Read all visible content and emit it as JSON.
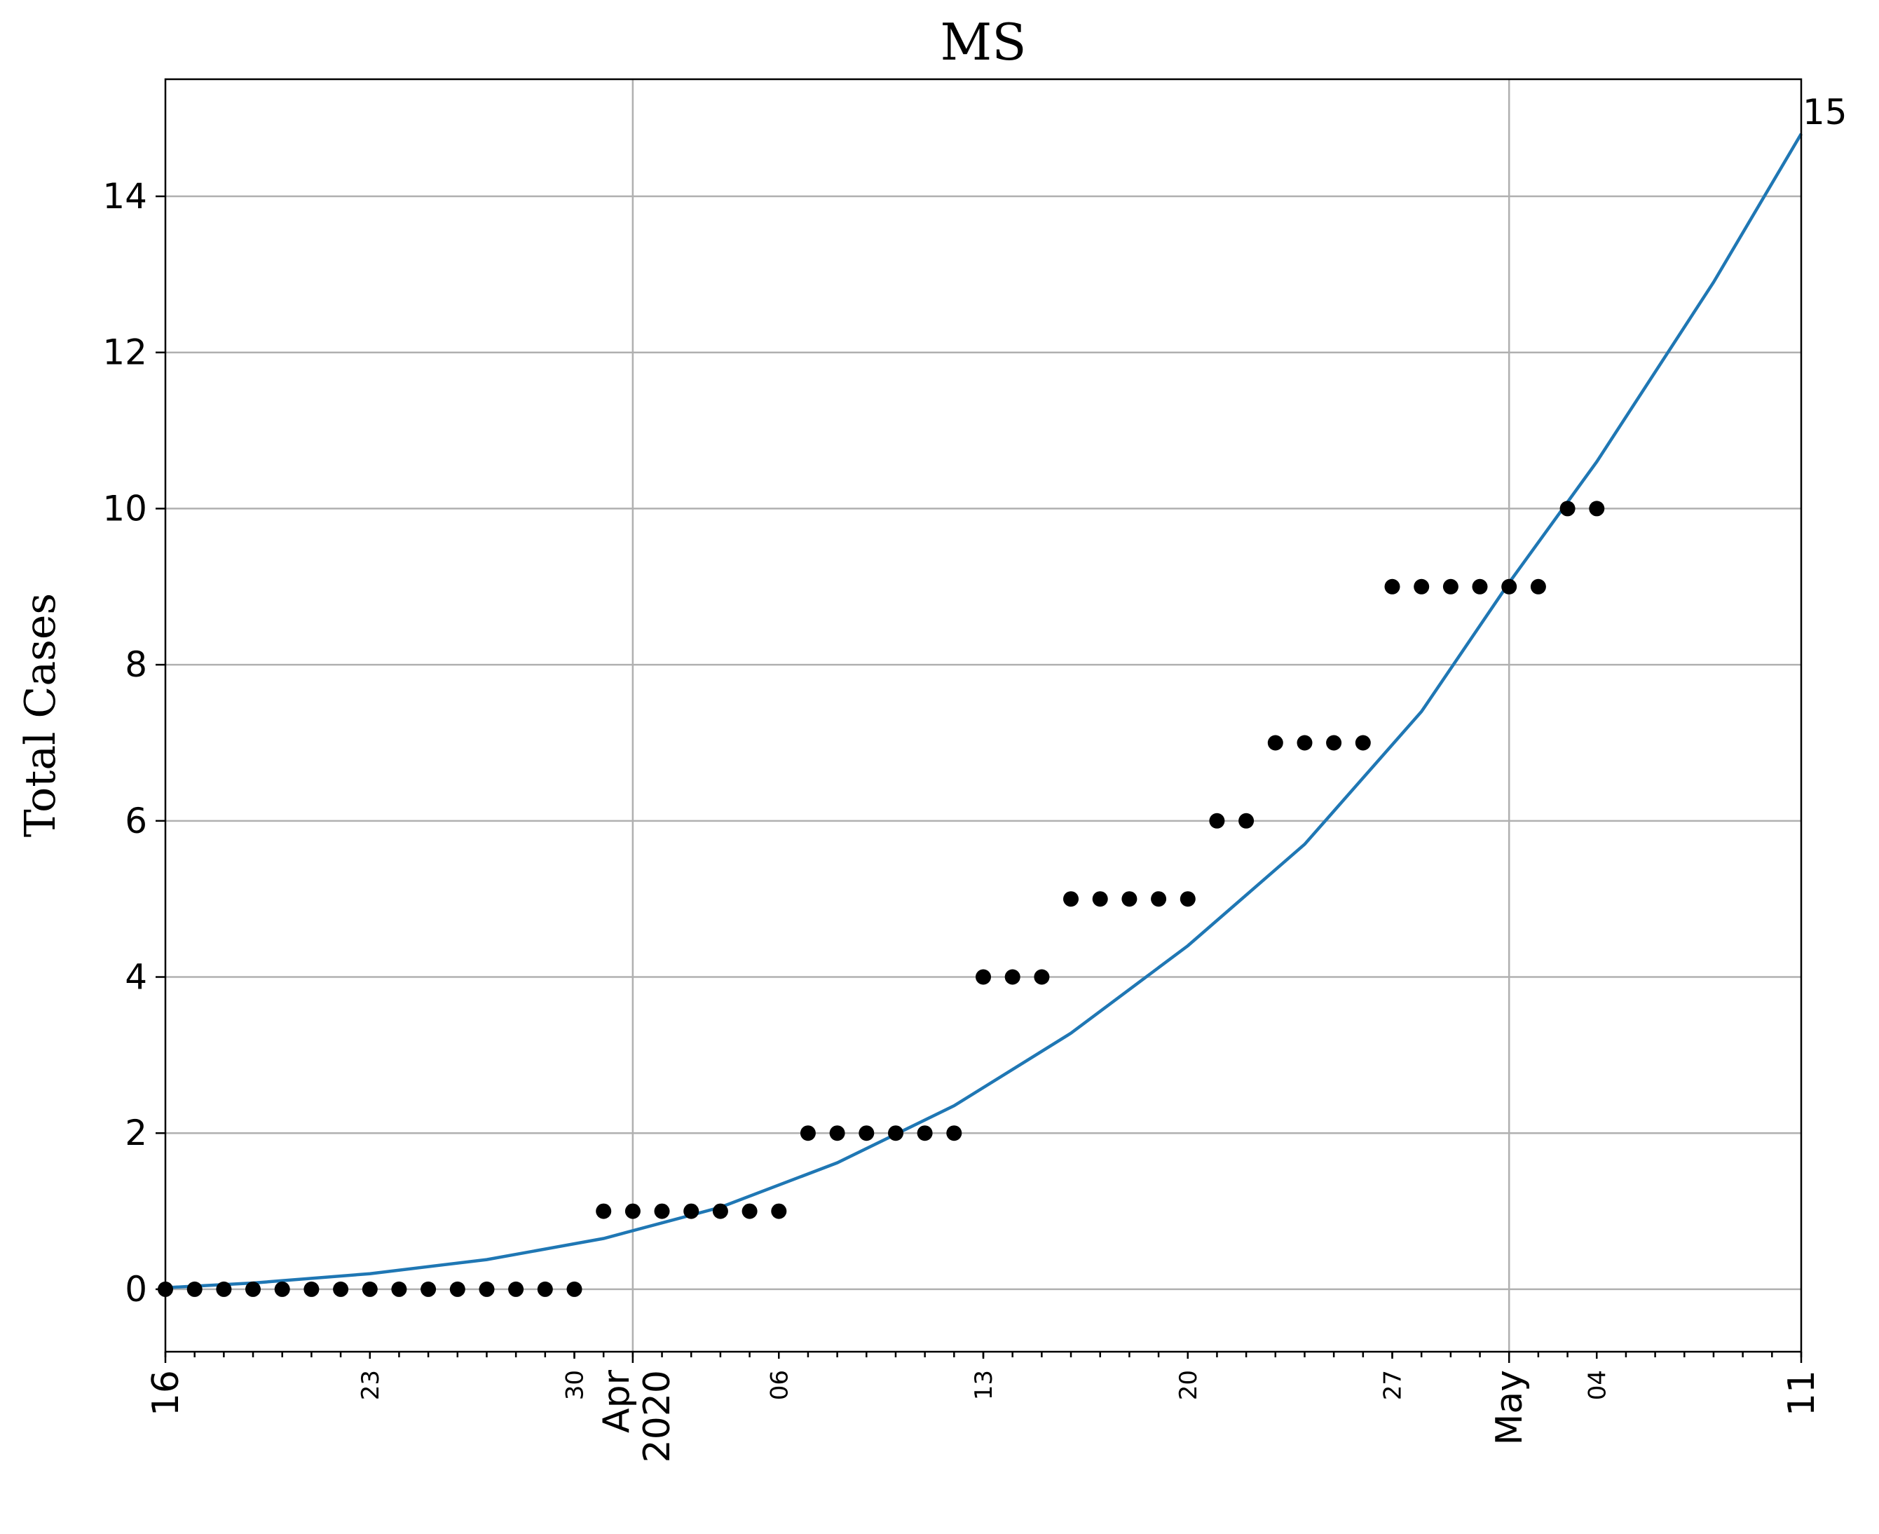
{
  "chart_data": {
    "type": "scatter",
    "title": "MS",
    "xlabel": "",
    "ylabel": "Total Cases",
    "x_start": "2020-03-16",
    "x_end": "2020-05-11",
    "ylim": [
      -0.8,
      15.5
    ],
    "yticks": [
      0,
      2,
      4,
      6,
      8,
      10,
      12,
      14
    ],
    "grid": true,
    "xtick_labels": [
      {
        "date": "2020-03-16",
        "label": "16",
        "kind": "major"
      },
      {
        "date": "2020-03-23",
        "label": "23",
        "kind": "minor"
      },
      {
        "date": "2020-03-30",
        "label": "30",
        "kind": "minor"
      },
      {
        "date": "2020-04-01",
        "label": "Apr",
        "label2": "2020",
        "kind": "major"
      },
      {
        "date": "2020-04-06",
        "label": "06",
        "kind": "minor"
      },
      {
        "date": "2020-04-13",
        "label": "13",
        "kind": "minor"
      },
      {
        "date": "2020-04-20",
        "label": "20",
        "kind": "minor"
      },
      {
        "date": "2020-04-27",
        "label": "27",
        "kind": "minor"
      },
      {
        "date": "2020-05-01",
        "label": "May",
        "kind": "major"
      },
      {
        "date": "2020-05-04",
        "label": "04",
        "kind": "minor"
      },
      {
        "date": "2020-05-11",
        "label": "11",
        "kind": "major"
      }
    ],
    "series": [
      {
        "kind": "observed",
        "color": "#000000",
        "points": [
          [
            "2020-03-16",
            0
          ],
          [
            "2020-03-17",
            0
          ],
          [
            "2020-03-18",
            0
          ],
          [
            "2020-03-19",
            0
          ],
          [
            "2020-03-20",
            0
          ],
          [
            "2020-03-21",
            0
          ],
          [
            "2020-03-22",
            0
          ],
          [
            "2020-03-23",
            0
          ],
          [
            "2020-03-24",
            0
          ],
          [
            "2020-03-25",
            0
          ],
          [
            "2020-03-26",
            0
          ],
          [
            "2020-03-27",
            0
          ],
          [
            "2020-03-28",
            0
          ],
          [
            "2020-03-29",
            0
          ],
          [
            "2020-03-30",
            0
          ],
          [
            "2020-03-31",
            1
          ],
          [
            "2020-04-01",
            1
          ],
          [
            "2020-04-02",
            1
          ],
          [
            "2020-04-03",
            1
          ],
          [
            "2020-04-04",
            1
          ],
          [
            "2020-04-05",
            1
          ],
          [
            "2020-04-06",
            1
          ],
          [
            "2020-04-07",
            2
          ],
          [
            "2020-04-08",
            2
          ],
          [
            "2020-04-09",
            2
          ],
          [
            "2020-04-10",
            2
          ],
          [
            "2020-04-11",
            2
          ],
          [
            "2020-04-12",
            2
          ],
          [
            "2020-04-13",
            4
          ],
          [
            "2020-04-14",
            4
          ],
          [
            "2020-04-15",
            4
          ],
          [
            "2020-04-16",
            5
          ],
          [
            "2020-04-17",
            5
          ],
          [
            "2020-04-18",
            5
          ],
          [
            "2020-04-19",
            5
          ],
          [
            "2020-04-20",
            5
          ],
          [
            "2020-04-21",
            6
          ],
          [
            "2020-04-22",
            6
          ],
          [
            "2020-04-23",
            7
          ],
          [
            "2020-04-24",
            7
          ],
          [
            "2020-04-25",
            7
          ],
          [
            "2020-04-26",
            7
          ],
          [
            "2020-04-27",
            9
          ],
          [
            "2020-04-28",
            9
          ],
          [
            "2020-04-29",
            9
          ],
          [
            "2020-04-30",
            9
          ],
          [
            "2020-05-01",
            9
          ],
          [
            "2020-05-02",
            9
          ],
          [
            "2020-05-03",
            10
          ],
          [
            "2020-05-04",
            10
          ]
        ]
      },
      {
        "kind": "fit",
        "color": "#1f77b4",
        "points": [
          [
            "2020-03-16",
            0.02
          ],
          [
            "2020-03-19",
            0.08
          ],
          [
            "2020-03-23",
            0.2
          ],
          [
            "2020-03-27",
            0.38
          ],
          [
            "2020-03-31",
            0.65
          ],
          [
            "2020-04-04",
            1.05
          ],
          [
            "2020-04-08",
            1.62
          ],
          [
            "2020-04-12",
            2.35
          ],
          [
            "2020-04-16",
            3.28
          ],
          [
            "2020-04-20",
            4.4
          ],
          [
            "2020-04-24",
            5.7
          ],
          [
            "2020-04-28",
            7.4
          ],
          [
            "2020-05-01",
            9.05
          ],
          [
            "2020-05-04",
            10.6
          ],
          [
            "2020-05-08",
            12.9
          ],
          [
            "2020-05-11",
            14.8
          ]
        ]
      }
    ],
    "annotations": [
      {
        "text": "15",
        "date": "2020-05-11",
        "y": 14.8
      }
    ]
  }
}
